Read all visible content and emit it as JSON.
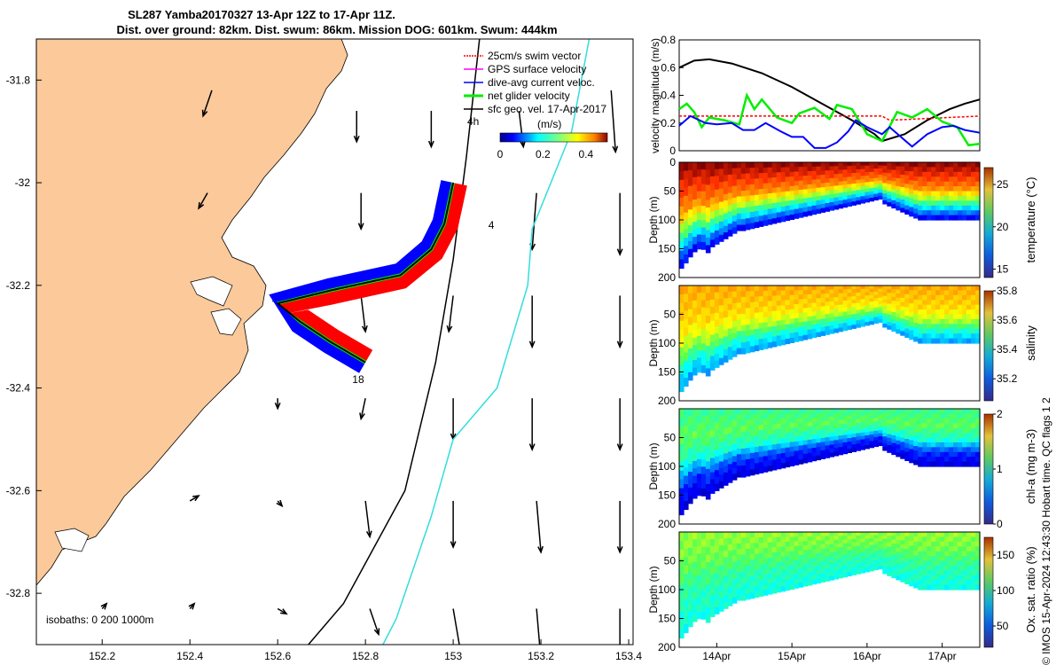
{
  "title": {
    "line1": "SL287 Yamba20170327 13-Apr 12Z to 17-Apr 11Z.",
    "line2": "Dist. over ground: 82km. Dist. swum: 86km. Mission DOG: 601km. Swum: 444km"
  },
  "credit": "© IMOS 15-Apr-2024 12:43:30 Hobart time. QC flags 1  2",
  "colors": {
    "land": "#fbc99a",
    "swim": "#ff0000",
    "gps": "#ff00ff",
    "dive_avg": "#0000ff",
    "net": "#00ee00",
    "track": "#000000",
    "iso200": "#000000",
    "iso1000": "#33dddd"
  },
  "chart_data": [
    {
      "type": "scatter",
      "panel": "map",
      "x_ticks": [
        "152.2",
        "152.4",
        "152.6",
        "152.8",
        "153",
        "153.2",
        "153.4"
      ],
      "y_ticks": [
        "-31.8",
        "-32",
        "-32.2",
        "-32.4",
        "-32.6",
        "-32.8"
      ],
      "xlim": [
        152.05,
        153.41
      ],
      "ylim": [
        -32.9,
        -31.72
      ],
      "legend": {
        "position": "top-right",
        "entries": [
          {
            "label": "25cm/s swim vector",
            "color": "#ff0000"
          },
          {
            "label": "GPS surface velocity",
            "color": "#ff00ff"
          },
          {
            "label": "dive-avg current veloc.",
            "color": "#0000ff"
          },
          {
            "label": "net glider velocity",
            "color": "#00ee00"
          },
          {
            "label": "sfc geo. vel. 17-Apr-2017",
            "color": "#000000"
          }
        ]
      },
      "scale_label": "4h",
      "colorbar": {
        "unit": "(m/s)",
        "ticks": [
          "0",
          "0.2",
          "0.4"
        ],
        "range": [
          0,
          0.5
        ]
      },
      "track_labels": [
        {
          "text": "4",
          "lon": 153.08,
          "lat": -32.09
        },
        {
          "text": "18",
          "lon": 152.77,
          "lat": -32.39
        }
      ],
      "isobaths_label": "isobaths: 0   200  1000m",
      "track": [
        [
          153.0,
          -32.0
        ],
        [
          152.99,
          -32.04
        ],
        [
          152.98,
          -32.08
        ],
        [
          152.95,
          -32.13
        ],
        [
          152.88,
          -32.18
        ],
        [
          152.72,
          -32.21
        ],
        [
          152.6,
          -32.235
        ],
        [
          152.65,
          -32.27
        ],
        [
          152.72,
          -32.31
        ],
        [
          152.8,
          -32.35
        ]
      ],
      "isobath_200": [
        [
          153.06,
          -31.72
        ],
        [
          153.03,
          -31.95
        ],
        [
          153.0,
          -32.15
        ],
        [
          152.96,
          -32.35
        ],
        [
          152.89,
          -32.6
        ],
        [
          152.75,
          -32.82
        ],
        [
          152.67,
          -32.9
        ]
      ],
      "isobath_1000": [
        [
          153.31,
          -31.72
        ],
        [
          153.27,
          -31.9
        ],
        [
          153.18,
          -32.09
        ],
        [
          153.17,
          -32.2
        ],
        [
          153.1,
          -32.4
        ],
        [
          153.0,
          -32.5
        ],
        [
          152.95,
          -32.65
        ],
        [
          152.87,
          -32.85
        ],
        [
          152.84,
          -32.9
        ]
      ],
      "vectors": [
        [
          152.45,
          -31.82,
          -0.02,
          -0.05
        ],
        [
          152.78,
          -31.86,
          0.0,
          -0.06
        ],
        [
          152.95,
          -31.86,
          0.0,
          -0.07
        ],
        [
          153.15,
          -31.86,
          0.01,
          -0.07
        ],
        [
          153.36,
          -31.82,
          0.01,
          -0.12
        ],
        [
          152.44,
          -32.02,
          -0.02,
          -0.03
        ],
        [
          152.79,
          -32.02,
          0.0,
          -0.07
        ],
        [
          153.19,
          -32.02,
          -0.01,
          -0.11
        ],
        [
          153.38,
          -32.02,
          0.0,
          -0.12
        ],
        [
          152.6,
          -32.22,
          -0.01,
          -0.01
        ],
        [
          152.79,
          -32.22,
          0.01,
          -0.07
        ],
        [
          153.0,
          -32.22,
          -0.01,
          -0.07
        ],
        [
          153.18,
          -32.22,
          0.0,
          -0.1
        ],
        [
          153.38,
          -32.22,
          0.0,
          -0.1
        ],
        [
          152.6,
          -32.42,
          0.0,
          -0.02
        ],
        [
          152.8,
          -32.42,
          -0.01,
          -0.04
        ],
        [
          153.0,
          -32.42,
          0.0,
          -0.08
        ],
        [
          153.18,
          -32.42,
          0.0,
          -0.1
        ],
        [
          153.38,
          -32.42,
          0.0,
          -0.1
        ],
        [
          152.4,
          -32.62,
          0.02,
          0.01
        ],
        [
          152.6,
          -32.62,
          0.01,
          -0.01
        ],
        [
          152.8,
          -32.62,
          0.01,
          -0.07
        ],
        [
          153.0,
          -32.62,
          0.0,
          -0.09
        ],
        [
          153.19,
          -32.62,
          0.01,
          -0.1
        ],
        [
          153.38,
          -32.62,
          0.0,
          -0.1
        ],
        [
          152.2,
          -32.83,
          0.01,
          0.01
        ],
        [
          152.4,
          -32.83,
          0.01,
          0.01
        ],
        [
          152.6,
          -32.83,
          0.02,
          -0.01
        ],
        [
          152.81,
          -32.83,
          0.02,
          -0.05
        ],
        [
          153.0,
          -32.83,
          0.02,
          -0.1
        ],
        [
          153.19,
          -32.83,
          0.01,
          -0.1
        ],
        [
          153.38,
          -32.83,
          0.0,
          -0.1
        ]
      ]
    },
    {
      "type": "line",
      "panel": "velocity",
      "ylabel": "velocity magnitude (m/s)",
      "ylim": [
        0,
        0.8
      ],
      "y_ticks": [
        "0",
        "0.2",
        "0.4",
        "0.6",
        "0.8"
      ],
      "x_days": [
        13.5,
        17.5
      ],
      "series": [
        {
          "color": "#000000",
          "points": [
            [
              13.5,
              0.6
            ],
            [
              13.7,
              0.65
            ],
            [
              13.9,
              0.66
            ],
            [
              14.2,
              0.63
            ],
            [
              14.6,
              0.56
            ],
            [
              15.0,
              0.46
            ],
            [
              15.4,
              0.34
            ],
            [
              15.8,
              0.22
            ],
            [
              16.1,
              0.12
            ],
            [
              16.2,
              0.07
            ],
            [
              16.5,
              0.12
            ],
            [
              16.8,
              0.22
            ],
            [
              17.1,
              0.3
            ],
            [
              17.3,
              0.34
            ],
            [
              17.5,
              0.37
            ]
          ]
        },
        {
          "color": "#ff0000",
          "points": [
            [
              13.5,
              0.25
            ],
            [
              16.2,
              0.25
            ],
            [
              16.3,
              0.22
            ],
            [
              17.5,
              0.25
            ]
          ]
        },
        {
          "color": "#00ee00",
          "points": [
            [
              13.5,
              0.3
            ],
            [
              13.6,
              0.34
            ],
            [
              13.7,
              0.28
            ],
            [
              13.8,
              0.17
            ],
            [
              13.9,
              0.24
            ],
            [
              14.1,
              0.22
            ],
            [
              14.3,
              0.19
            ],
            [
              14.4,
              0.4
            ],
            [
              14.5,
              0.3
            ],
            [
              14.6,
              0.37
            ],
            [
              14.8,
              0.24
            ],
            [
              15.0,
              0.2
            ],
            [
              15.1,
              0.27
            ],
            [
              15.3,
              0.31
            ],
            [
              15.5,
              0.23
            ],
            [
              15.6,
              0.33
            ],
            [
              15.8,
              0.3
            ],
            [
              16.0,
              0.12
            ],
            [
              16.2,
              0.07
            ],
            [
              16.4,
              0.28
            ],
            [
              16.6,
              0.24
            ],
            [
              16.8,
              0.3
            ],
            [
              17.0,
              0.21
            ],
            [
              17.2,
              0.17
            ],
            [
              17.35,
              0.04
            ],
            [
              17.5,
              0.05
            ]
          ]
        },
        {
          "color": "#0000ff",
          "points": [
            [
              13.5,
              0.18
            ],
            [
              13.65,
              0.25
            ],
            [
              13.85,
              0.2
            ],
            [
              14.0,
              0.19
            ],
            [
              14.2,
              0.2
            ],
            [
              14.35,
              0.15
            ],
            [
              14.5,
              0.15
            ],
            [
              14.65,
              0.2
            ],
            [
              14.85,
              0.14
            ],
            [
              15.0,
              0.1
            ],
            [
              15.15,
              0.1
            ],
            [
              15.3,
              0.02
            ],
            [
              15.45,
              0.02
            ],
            [
              15.6,
              0.06
            ],
            [
              15.75,
              0.14
            ],
            [
              15.85,
              0.22
            ],
            [
              16.0,
              0.17
            ],
            [
              16.2,
              0.12
            ],
            [
              16.3,
              0.17
            ],
            [
              16.45,
              0.1
            ],
            [
              16.6,
              0.03
            ],
            [
              16.8,
              0.12
            ],
            [
              17.0,
              0.17
            ],
            [
              17.15,
              0.18
            ],
            [
              17.3,
              0.15
            ],
            [
              17.5,
              0.13
            ]
          ]
        }
      ]
    },
    {
      "type": "heatmap",
      "panel": "temperature",
      "ylabel": "Depth (m)",
      "y_ticks": [
        "0",
        "50",
        "100",
        "150",
        "200"
      ],
      "ylim": [
        200,
        0
      ],
      "colorbar_label": "temperature (°C)",
      "cb_ticks": [
        "25",
        "20",
        "15"
      ],
      "cb_range": [
        14,
        27
      ],
      "stops": [
        [
          0.0,
          27
        ],
        [
          0.45,
          24
        ],
        [
          0.65,
          21
        ],
        [
          0.82,
          18
        ],
        [
          1.0,
          15
        ]
      ]
    },
    {
      "type": "heatmap",
      "panel": "salinity",
      "ylabel": "Depth (m)",
      "y_ticks": [
        "50",
        "100",
        "150",
        "200"
      ],
      "ylim": [
        200,
        0
      ],
      "colorbar_label": "salinity",
      "cb_ticks": [
        "35.8",
        "35.6",
        "35.4",
        "35.2"
      ],
      "cb_range": [
        35.05,
        35.8
      ],
      "stops": [
        [
          0.0,
          35.6
        ],
        [
          0.4,
          35.55
        ],
        [
          0.6,
          35.48
        ],
        [
          0.8,
          35.35
        ],
        [
          1.0,
          35.25
        ]
      ]
    },
    {
      "type": "heatmap",
      "panel": "chl-a",
      "ylabel": "Depth (m)",
      "y_ticks": [
        "50",
        "100",
        "150",
        "200"
      ],
      "ylim": [
        200,
        0
      ],
      "colorbar_label": "chl-a (mg m-3)",
      "cb_ticks": [
        "2",
        "1",
        "0"
      ],
      "cb_range": [
        0,
        2
      ],
      "stops": [
        [
          0.0,
          0.9
        ],
        [
          0.3,
          1.0
        ],
        [
          0.55,
          0.8
        ],
        [
          0.75,
          0.35
        ],
        [
          1.0,
          0.15
        ]
      ]
    },
    {
      "type": "heatmap",
      "panel": "oxygen",
      "ylabel": "Depth (m)",
      "y_ticks": [
        "50",
        "100",
        "150",
        "200"
      ],
      "ylim": [
        200,
        0
      ],
      "colorbar_label": "Ox. sat. ratio (%)",
      "cb_ticks": [
        "150",
        "100",
        "50"
      ],
      "cb_range": [
        20,
        175
      ],
      "stops": [
        [
          0.0,
          105
        ],
        [
          0.3,
          100
        ],
        [
          0.6,
          88
        ],
        [
          1.0,
          80
        ]
      ]
    },
    {
      "type": "axis",
      "panel": "time",
      "x_ticks": [
        "14Apr",
        "15Apr",
        "16Apr",
        "17Apr"
      ],
      "x_tick_days": [
        14,
        15,
        16,
        17
      ],
      "xlim": [
        13.5,
        17.5
      ]
    }
  ]
}
